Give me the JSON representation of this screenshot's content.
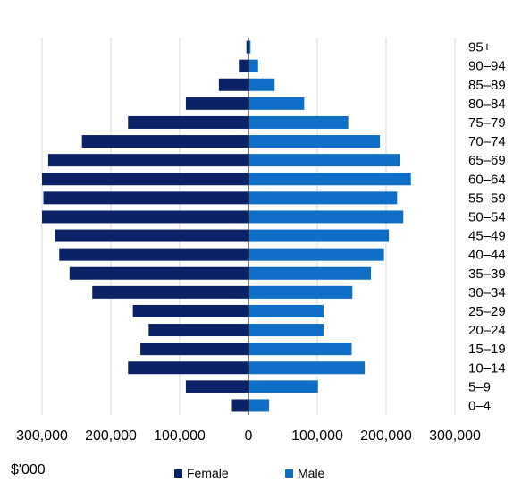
{
  "chart_data": {
    "type": "bar",
    "orientation": "horizontal-population-pyramid",
    "categories": [
      "0–4",
      "5–9",
      "10–14",
      "15–19",
      "20–24",
      "25–29",
      "30–34",
      "35–39",
      "40–44",
      "45–49",
      "50–54",
      "55–59",
      "60–64",
      "65–69",
      "70–74",
      "75–79",
      "80–84",
      "85–89",
      "90–94",
      "95+"
    ],
    "series": [
      {
        "name": "Female",
        "color": "#0b2366",
        "values": [
          24000,
          91000,
          175000,
          157000,
          145000,
          168000,
          227000,
          260000,
          275000,
          281000,
          300000,
          298000,
          300000,
          291000,
          242000,
          175000,
          91000,
          43000,
          14000,
          3000
        ]
      },
      {
        "name": "Male",
        "color": "#0f6fc6",
        "values": [
          30000,
          101000,
          169000,
          150000,
          109000,
          109000,
          151000,
          178000,
          197000,
          204000,
          225000,
          216000,
          236000,
          220000,
          191000,
          145000,
          81000,
          38000,
          14000,
          3000
        ]
      }
    ],
    "xlim": [
      -300000,
      300000
    ],
    "x_ticks": [
      -300000,
      -200000,
      -100000,
      0,
      100000,
      200000,
      300000
    ],
    "x_tick_labels": [
      "300,000",
      "200,000",
      "100,000",
      "0",
      "100,000",
      "200,000",
      "300,000"
    ],
    "xlabel": "$'000",
    "grid": true,
    "legend_position": "bottom"
  }
}
